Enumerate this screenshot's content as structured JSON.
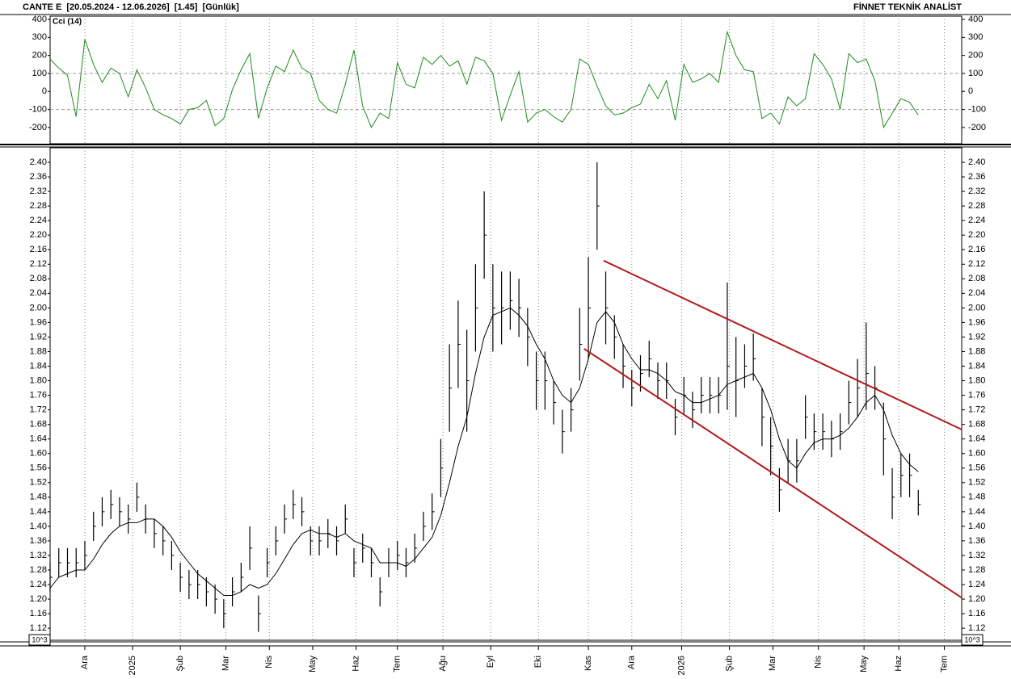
{
  "header": {
    "title": "CANTE E  [20.05.2024 - 12.06.2026]  [1.45]  [Günlük]",
    "brand": "FİNNET TEKNİK ANALİST"
  },
  "scale_label": "10^3",
  "chart_data": [
    {
      "type": "line",
      "legend_label": "Cci (14)",
      "x": [
        0,
        4,
        8,
        12,
        16,
        20,
        24,
        28,
        32,
        36,
        40,
        44,
        48,
        52,
        56,
        60,
        64,
        68,
        72,
        76,
        80,
        84,
        88,
        92,
        96,
        100,
        104,
        108,
        112,
        116,
        120,
        124,
        128,
        132,
        136,
        140,
        144,
        148,
        152,
        156,
        160,
        164,
        168,
        172,
        176,
        180,
        184,
        188,
        192,
        196,
        200,
        204,
        208,
        212,
        216,
        220,
        224,
        228,
        232,
        236,
        240,
        244,
        248,
        252,
        256,
        260,
        264,
        268,
        272,
        276,
        280,
        284,
        288,
        292,
        296,
        300,
        304,
        308,
        312,
        316,
        320,
        324,
        328,
        332,
        336,
        340,
        344,
        348,
        352,
        356,
        360,
        364,
        368,
        372,
        376,
        380,
        384,
        388,
        392,
        396,
        400
      ],
      "series": [
        {
          "name": "Cci (14)",
          "color": "#1e8c1e",
          "values": [
            180,
            130,
            90,
            -140,
            290,
            150,
            50,
            130,
            100,
            -30,
            120,
            20,
            -100,
            -130,
            -150,
            -180,
            -100,
            -90,
            -50,
            -190,
            -150,
            10,
            120,
            210,
            -150,
            20,
            140,
            110,
            230,
            130,
            100,
            -50,
            -100,
            -120,
            40,
            230,
            -80,
            -200,
            -120,
            -150,
            160,
            40,
            20,
            190,
            150,
            200,
            140,
            170,
            40,
            190,
            170,
            100,
            -160,
            -20,
            110,
            -170,
            -120,
            -100,
            -140,
            -170,
            -100,
            180,
            150,
            30,
            -80,
            -130,
            -120,
            -90,
            -70,
            40,
            -40,
            60,
            -160,
            150,
            50,
            70,
            100,
            50,
            330,
            200,
            120,
            110,
            -150,
            -120,
            -180,
            -30,
            -80,
            -40,
            210,
            150,
            70,
            -100,
            210,
            160,
            180,
            60,
            -200,
            -120,
            -40,
            -60,
            -130
          ]
        }
      ],
      "xlim": [
        0,
        420
      ],
      "ylim": [
        -290,
        418
      ],
      "yticks": [
        400,
        300,
        200,
        100,
        0,
        -100,
        -200
      ],
      "reference_lines": [
        100,
        -100
      ]
    },
    {
      "type": "ohlc",
      "x": [
        0,
        4,
        8,
        12,
        16,
        20,
        24,
        28,
        32,
        36,
        40,
        44,
        48,
        52,
        56,
        60,
        64,
        68,
        72,
        76,
        80,
        84,
        88,
        92,
        96,
        100,
        104,
        108,
        112,
        116,
        120,
        124,
        128,
        132,
        136,
        140,
        144,
        148,
        152,
        156,
        160,
        164,
        168,
        172,
        176,
        180,
        184,
        188,
        192,
        196,
        200,
        204,
        208,
        212,
        216,
        220,
        224,
        228,
        232,
        236,
        240,
        244,
        248,
        252,
        256,
        260,
        264,
        268,
        272,
        276,
        280,
        284,
        288,
        292,
        296,
        300,
        304,
        308,
        312,
        316,
        320,
        324,
        328,
        332,
        336,
        340,
        344,
        348,
        352,
        356,
        360,
        364,
        368,
        372,
        376,
        380,
        384,
        388,
        392,
        396,
        400
      ],
      "high": [
        1.3,
        1.34,
        1.34,
        1.34,
        1.36,
        1.44,
        1.48,
        1.5,
        1.48,
        1.46,
        1.52,
        1.46,
        1.42,
        1.4,
        1.36,
        1.3,
        1.28,
        1.28,
        1.26,
        1.24,
        1.2,
        1.26,
        1.3,
        1.4,
        1.21,
        1.34,
        1.4,
        1.46,
        1.5,
        1.48,
        1.4,
        1.4,
        1.42,
        1.4,
        1.46,
        1.34,
        1.38,
        1.34,
        1.26,
        1.34,
        1.36,
        1.34,
        1.38,
        1.44,
        1.49,
        1.64,
        1.9,
        2.02,
        1.94,
        2.12,
        2.32,
        2.12,
        2.1,
        2.1,
        2.08,
        2.0,
        1.88,
        1.88,
        1.8,
        1.72,
        1.78,
        2.0,
        2.14,
        2.4,
        2.1,
        1.98,
        1.9,
        1.83,
        1.87,
        1.91,
        1.85,
        1.85,
        1.75,
        1.81,
        1.77,
        1.81,
        1.81,
        1.81,
        2.07,
        1.92,
        1.9,
        1.93,
        1.78,
        1.7,
        1.56,
        1.64,
        1.64,
        1.76,
        1.71,
        1.71,
        1.69,
        1.71,
        1.8,
        1.86,
        1.96,
        1.84,
        1.74,
        1.56,
        1.6,
        1.6,
        1.5
      ],
      "low": [
        1.22,
        1.26,
        1.26,
        1.26,
        1.28,
        1.36,
        1.4,
        1.42,
        1.4,
        1.38,
        1.44,
        1.38,
        1.34,
        1.32,
        1.28,
        1.22,
        1.2,
        1.2,
        1.18,
        1.16,
        1.12,
        1.18,
        1.22,
        1.28,
        1.11,
        1.26,
        1.32,
        1.38,
        1.42,
        1.4,
        1.32,
        1.32,
        1.34,
        1.32,
        1.38,
        1.26,
        1.3,
        1.26,
        1.18,
        1.26,
        1.28,
        1.26,
        1.3,
        1.36,
        1.39,
        1.48,
        1.66,
        1.78,
        1.66,
        1.88,
        2.08,
        1.88,
        1.9,
        1.94,
        1.92,
        1.84,
        1.72,
        1.72,
        1.68,
        1.6,
        1.66,
        1.8,
        1.86,
        2.16,
        1.9,
        1.86,
        1.78,
        1.73,
        1.77,
        1.81,
        1.75,
        1.75,
        1.65,
        1.71,
        1.67,
        1.71,
        1.71,
        1.71,
        1.72,
        1.7,
        1.78,
        1.8,
        1.62,
        1.54,
        1.44,
        1.52,
        1.52,
        1.64,
        1.61,
        1.61,
        1.59,
        1.61,
        1.68,
        1.7,
        1.72,
        1.72,
        1.54,
        1.42,
        1.48,
        1.48,
        1.43
      ],
      "close": [
        1.26,
        1.3,
        1.3,
        1.3,
        1.32,
        1.4,
        1.44,
        1.46,
        1.44,
        1.42,
        1.48,
        1.42,
        1.38,
        1.36,
        1.32,
        1.26,
        1.24,
        1.24,
        1.22,
        1.2,
        1.16,
        1.22,
        1.26,
        1.34,
        1.16,
        1.3,
        1.36,
        1.42,
        1.46,
        1.44,
        1.36,
        1.36,
        1.38,
        1.36,
        1.42,
        1.3,
        1.34,
        1.3,
        1.22,
        1.3,
        1.32,
        1.3,
        1.34,
        1.4,
        1.44,
        1.56,
        1.78,
        1.9,
        1.8,
        2.0,
        2.2,
        2.0,
        2.0,
        2.02,
        2.0,
        1.92,
        1.8,
        1.8,
        1.74,
        1.66,
        1.72,
        1.9,
        2.0,
        2.28,
        2.0,
        1.92,
        1.84,
        1.78,
        1.82,
        1.86,
        1.8,
        1.8,
        1.7,
        1.76,
        1.72,
        1.76,
        1.76,
        1.76,
        1.84,
        1.8,
        1.84,
        1.86,
        1.7,
        1.62,
        1.5,
        1.58,
        1.58,
        1.7,
        1.66,
        1.66,
        1.64,
        1.66,
        1.74,
        1.78,
        1.82,
        1.78,
        1.64,
        1.48,
        1.54,
        1.54,
        1.46
      ],
      "color": "#000000",
      "moving_average": {
        "color": "#000000",
        "values": [
          1.23,
          1.26,
          1.27,
          1.28,
          1.28,
          1.31,
          1.35,
          1.38,
          1.4,
          1.41,
          1.41,
          1.42,
          1.42,
          1.4,
          1.37,
          1.33,
          1.3,
          1.27,
          1.25,
          1.23,
          1.21,
          1.21,
          1.22,
          1.24,
          1.23,
          1.24,
          1.27,
          1.31,
          1.35,
          1.38,
          1.39,
          1.38,
          1.38,
          1.37,
          1.38,
          1.36,
          1.35,
          1.34,
          1.3,
          1.3,
          1.3,
          1.29,
          1.31,
          1.34,
          1.37,
          1.43,
          1.52,
          1.62,
          1.7,
          1.82,
          1.92,
          1.98,
          1.99,
          2.0,
          1.98,
          1.95,
          1.9,
          1.86,
          1.8,
          1.76,
          1.74,
          1.78,
          1.86,
          1.96,
          1.99,
          1.96,
          1.9,
          1.86,
          1.83,
          1.83,
          1.82,
          1.8,
          1.77,
          1.76,
          1.74,
          1.74,
          1.75,
          1.76,
          1.79,
          1.8,
          1.81,
          1.82,
          1.78,
          1.72,
          1.64,
          1.58,
          1.56,
          1.6,
          1.63,
          1.64,
          1.64,
          1.65,
          1.67,
          1.7,
          1.74,
          1.76,
          1.72,
          1.65,
          1.6,
          1.57,
          1.55
        ]
      },
      "trendline_color": "#b01a1a",
      "trendlines": [
        {
          "x": [
            255,
            420
          ],
          "y": [
            2.13,
            1.666
          ]
        },
        {
          "x": [
            246,
            420
          ],
          "y": [
            1.888,
            1.204
          ]
        }
      ],
      "xlim": [
        0,
        420
      ],
      "ylim": [
        1.087,
        2.44
      ],
      "xticks": [
        {
          "value": 16,
          "label": "Ara"
        },
        {
          "value": 38,
          "label": "2025"
        },
        {
          "value": 60,
          "label": "Şub"
        },
        {
          "value": 81,
          "label": "Mar"
        },
        {
          "value": 101,
          "label": "Nis"
        },
        {
          "value": 121,
          "label": "May"
        },
        {
          "value": 141,
          "label": "Haz"
        },
        {
          "value": 160,
          "label": "Tem"
        },
        {
          "value": 181,
          "label": "Ağu"
        },
        {
          "value": 203,
          "label": "Eyl"
        },
        {
          "value": 225,
          "label": "Eki"
        },
        {
          "value": 248,
          "label": "Kas"
        },
        {
          "value": 268,
          "label": "Ara"
        },
        {
          "value": 291,
          "label": "2026"
        },
        {
          "value": 313,
          "label": "Şub"
        },
        {
          "value": 333,
          "label": "Mar"
        },
        {
          "value": 354,
          "label": "Nis"
        },
        {
          "value": 375,
          "label": "May"
        },
        {
          "value": 391,
          "label": "Haz"
        },
        {
          "value": 412,
          "label": "Tem"
        }
      ],
      "yticks": [
        {
          "value": 1.12,
          "label": "1.12"
        },
        {
          "value": 1.16,
          "label": "1.16"
        },
        {
          "value": 1.2,
          "label": "1.20"
        },
        {
          "value": 1.24,
          "label": "1.24"
        },
        {
          "value": 1.28,
          "label": "1.28"
        },
        {
          "value": 1.32,
          "label": "1.32"
        },
        {
          "value": 1.36,
          "label": "1.36"
        },
        {
          "value": 1.4,
          "label": "1.40"
        },
        {
          "value": 1.44,
          "label": "1.44"
        },
        {
          "value": 1.48,
          "label": "1.48"
        },
        {
          "value": 1.52,
          "label": "1.52"
        },
        {
          "value": 1.56,
          "label": "1.56"
        },
        {
          "value": 1.6,
          "label": "1.60"
        },
        {
          "value": 1.64,
          "label": "1.64"
        },
        {
          "value": 1.68,
          "label": "1.68"
        },
        {
          "value": 1.72,
          "label": "1.72"
        },
        {
          "value": 1.76,
          "label": "1.76"
        },
        {
          "value": 1.8,
          "label": "1.80"
        },
        {
          "value": 1.84,
          "label": "1.84"
        },
        {
          "value": 1.88,
          "label": "1.88"
        },
        {
          "value": 1.92,
          "label": "1.92"
        },
        {
          "value": 1.96,
          "label": "1.96"
        },
        {
          "value": 2.0,
          "label": "2.00"
        },
        {
          "value": 2.04,
          "label": "2.04"
        },
        {
          "value": 2.08,
          "label": "2.08"
        },
        {
          "value": 2.12,
          "label": "2.12"
        },
        {
          "value": 2.16,
          "label": "2.16"
        },
        {
          "value": 2.2,
          "label": "2.20"
        },
        {
          "value": 2.24,
          "label": "2.24"
        },
        {
          "value": 2.28,
          "label": "2.28"
        },
        {
          "value": 2.32,
          "label": "2.32"
        },
        {
          "value": 2.36,
          "label": "2.36"
        },
        {
          "value": 2.4,
          "label": "2.40"
        }
      ],
      "grid": true
    }
  ]
}
